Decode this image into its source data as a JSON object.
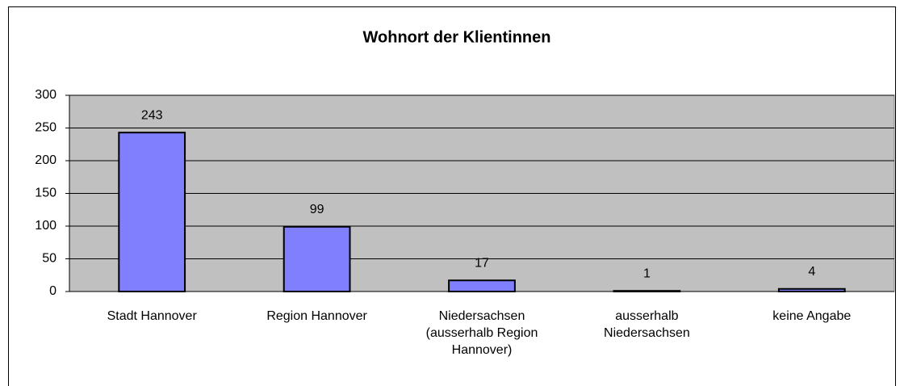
{
  "chart_data": {
    "type": "bar",
    "title": "Wohnort der Klientinnen",
    "categories": [
      [
        "Stadt Hannover"
      ],
      [
        "Region Hannover"
      ],
      [
        "Niedersachsen",
        "(ausserhalb Region",
        "Hannover)"
      ],
      [
        "ausserhalb",
        "Niedersachsen"
      ],
      [
        "keine Angabe"
      ]
    ],
    "values": [
      243,
      99,
      17,
      1,
      4
    ],
    "color": "#8080ff",
    "plot_background": "#c0c0c0",
    "ylim": [
      0,
      300
    ],
    "yticks": [
      0,
      50,
      100,
      150,
      200,
      250,
      300
    ],
    "grid": true
  }
}
